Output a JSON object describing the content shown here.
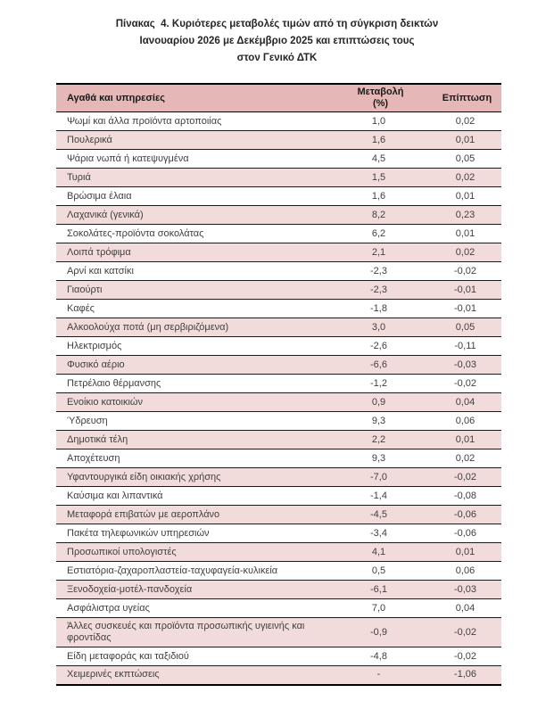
{
  "document": {
    "title_lines": [
      "Πίνακας  4. Κυριότερες μεταβολές τιμών από τη σύγκριση δεικτών",
      "Ιανουαρίου 2026 με Δεκέμβριο 2025 και επιπτώσεις τους",
      "στον Γενικό ΔΤΚ"
    ]
  },
  "table": {
    "columns": [
      {
        "label": "Αγαθά και υπηρεσίες"
      },
      {
        "label": "Μεταβολή",
        "label_line2": "(%)"
      },
      {
        "label": "Επίπτωση"
      }
    ],
    "rows": [
      {
        "item": "Ψωμί και άλλα προϊόντα αρτοποιίας",
        "change": "1,0",
        "impact": "0,02"
      },
      {
        "item": "Πουλερικά",
        "change": "1,6",
        "impact": "0,01"
      },
      {
        "item": "Ψάρια νωπά ή κατεψυγμένα",
        "change": "4,5",
        "impact": "0,05"
      },
      {
        "item": "Τυριά",
        "change": "1,5",
        "impact": "0,02"
      },
      {
        "item": "Βρώσιμα έλαια",
        "change": "1,6",
        "impact": "0,01"
      },
      {
        "item": "Λαχανικά (γενικά)",
        "change": "8,2",
        "impact": "0,23"
      },
      {
        "item": "Σοκολάτες-προϊόντα σοκολάτας",
        "change": "6,2",
        "impact": "0,01"
      },
      {
        "item": "Λοιπά τρόφιμα",
        "change": "2,1",
        "impact": "0,02"
      },
      {
        "item": "Αρνί και κατσίκι",
        "change": "-2,3",
        "impact": "-0,02"
      },
      {
        "item": "Γιαούρτι",
        "change": "-2,3",
        "impact": "-0,01"
      },
      {
        "item": "Καφές",
        "change": "-1,8",
        "impact": "-0,01"
      },
      {
        "item": "Αλκοολούχα ποτά (μη σερβιριζόμενα)",
        "change": "3,0",
        "impact": "0,05"
      },
      {
        "item": "Ηλεκτρισμός",
        "change": "-2,6",
        "impact": "-0,11"
      },
      {
        "item": "Φυσικό αέριο",
        "change": "-6,6",
        "impact": "-0,03"
      },
      {
        "item": "Πετρέλαιο θέρμανσης",
        "change": "-1,2",
        "impact": "-0,02"
      },
      {
        "item": "Ενοίκιο κατοικιών",
        "change": "0,9",
        "impact": "0,04"
      },
      {
        "item": "Ύδρευση",
        "change": "9,3",
        "impact": "0,06"
      },
      {
        "item": "Δημοτικά τέλη",
        "change": "2,2",
        "impact": "0,01"
      },
      {
        "item": "Αποχέτευση",
        "change": "9,3",
        "impact": "0,02"
      },
      {
        "item": "Υφαντουργικά είδη οικιακής χρήσης",
        "change": "-7,0",
        "impact": "-0,02"
      },
      {
        "item": "Καύσιμα και λιπαντικά",
        "change": "-1,4",
        "impact": "-0,08"
      },
      {
        "item": "Μεταφορά επιβατών με αεροπλάνο",
        "change": "-4,5",
        "impact": "-0,06"
      },
      {
        "item": "Πακέτα τηλεφωνικών υπηρεσιών",
        "change": "-3,4",
        "impact": "-0,06"
      },
      {
        "item": "Προσωπικοί υπολογιστές",
        "change": "4,1",
        "impact": "0,01"
      },
      {
        "item": "Εστιατόρια-ζαχαροπλαστεία-ταχυφαγεία-κυλικεία",
        "change": "0,5",
        "impact": "0,06"
      },
      {
        "item": "Ξενοδοχεία-μοτέλ-πανδοχεία",
        "change": "-6,1",
        "impact": "-0,03"
      },
      {
        "item": "Ασφάλιστρα υγείας",
        "change": "7,0",
        "impact": "0,04"
      },
      {
        "item": "Άλλες συσκευές και προϊόντα προσωπικής υγιεινής και φροντίδας",
        "change": "-0,9",
        "impact": "-0,02"
      },
      {
        "item": "Είδη μεταφοράς και ταξιδιού",
        "change": "-4,8",
        "impact": "-0,02"
      },
      {
        "item": "Χειμερινές εκπτώσεις",
        "change": "-",
        "impact": "-1,06"
      }
    ]
  },
  "colors": {
    "header_bg": "#e5b8b7",
    "band_bg": "#f2dcdb",
    "border_dark": "#1a1a1a",
    "body_text": "#404040",
    "title_text": "#262626"
  }
}
